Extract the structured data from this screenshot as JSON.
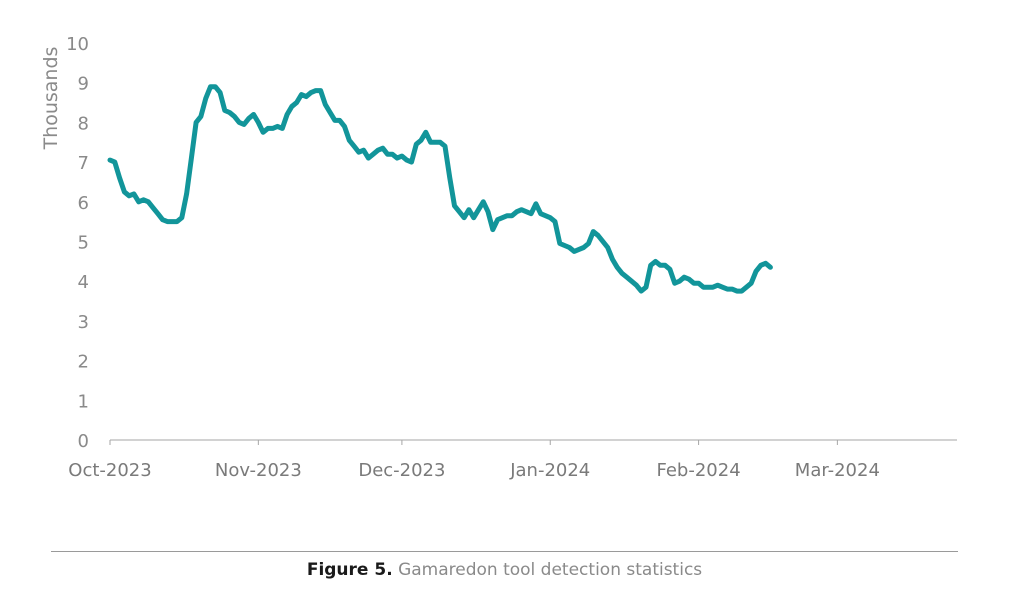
{
  "caption": {
    "label": "Figure 5.",
    "text": "Gamaredon tool detection statistics"
  },
  "colors": {
    "line": "#12959a",
    "axis": "#a6a6a6",
    "text": "#8a8a8a"
  },
  "chart_data": {
    "type": "line",
    "title": "",
    "xlabel": "",
    "ylabel": "Thousands",
    "ylim": [
      0,
      10
    ],
    "yticks": [
      "0",
      "1",
      "2",
      "3",
      "4",
      "5",
      "6",
      "7",
      "8",
      "9",
      "10"
    ],
    "xlim": [
      "2023-10-01",
      "2024-03-26"
    ],
    "xticks": [
      {
        "date": "2023-10-01",
        "label": "Oct-2023"
      },
      {
        "date": "2023-11-01",
        "label": "Nov-2023"
      },
      {
        "date": "2023-12-01",
        "label": "Dec-2023"
      },
      {
        "date": "2024-01-01",
        "label": "Jan-2024"
      },
      {
        "date": "2024-02-01",
        "label": "Feb-2024"
      },
      {
        "date": "2024-03-01",
        "label": "Mar-2024"
      }
    ],
    "grid": false,
    "legend": "none",
    "series": [
      {
        "points": [
          [
            "2023-10-01",
            7.05
          ],
          [
            "2023-10-02",
            7.0
          ],
          [
            "2023-10-03",
            6.6
          ],
          [
            "2023-10-04",
            6.25
          ],
          [
            "2023-10-05",
            6.15
          ],
          [
            "2023-10-06",
            6.2
          ],
          [
            "2023-10-07",
            6.0
          ],
          [
            "2023-10-08",
            6.05
          ],
          [
            "2023-10-09",
            6.0
          ],
          [
            "2023-10-10",
            5.85
          ],
          [
            "2023-10-11",
            5.7
          ],
          [
            "2023-10-12",
            5.55
          ],
          [
            "2023-10-13",
            5.5
          ],
          [
            "2023-10-14",
            5.5
          ],
          [
            "2023-10-15",
            5.5
          ],
          [
            "2023-10-16",
            5.6
          ],
          [
            "2023-10-17",
            6.2
          ],
          [
            "2023-10-18",
            7.1
          ],
          [
            "2023-10-19",
            8.0
          ],
          [
            "2023-10-20",
            8.15
          ],
          [
            "2023-10-21",
            8.6
          ],
          [
            "2023-10-22",
            8.9
          ],
          [
            "2023-10-23",
            8.9
          ],
          [
            "2023-10-24",
            8.75
          ],
          [
            "2023-10-25",
            8.3
          ],
          [
            "2023-10-26",
            8.25
          ],
          [
            "2023-10-27",
            8.15
          ],
          [
            "2023-10-28",
            8.0
          ],
          [
            "2023-10-29",
            7.95
          ],
          [
            "2023-10-30",
            8.1
          ],
          [
            "2023-10-31",
            8.2
          ],
          [
            "2023-11-01",
            8.0
          ],
          [
            "2023-11-02",
            7.75
          ],
          [
            "2023-11-03",
            7.85
          ],
          [
            "2023-11-04",
            7.85
          ],
          [
            "2023-11-05",
            7.9
          ],
          [
            "2023-11-06",
            7.85
          ],
          [
            "2023-11-07",
            8.2
          ],
          [
            "2023-11-08",
            8.4
          ],
          [
            "2023-11-09",
            8.5
          ],
          [
            "2023-11-10",
            8.7
          ],
          [
            "2023-11-11",
            8.65
          ],
          [
            "2023-11-12",
            8.75
          ],
          [
            "2023-11-13",
            8.8
          ],
          [
            "2023-11-14",
            8.8
          ],
          [
            "2023-11-15",
            8.45
          ],
          [
            "2023-11-16",
            8.25
          ],
          [
            "2023-11-17",
            8.05
          ],
          [
            "2023-11-18",
            8.05
          ],
          [
            "2023-11-19",
            7.9
          ],
          [
            "2023-11-20",
            7.55
          ],
          [
            "2023-11-21",
            7.4
          ],
          [
            "2023-11-22",
            7.25
          ],
          [
            "2023-11-23",
            7.3
          ],
          [
            "2023-11-24",
            7.1
          ],
          [
            "2023-11-25",
            7.2
          ],
          [
            "2023-11-26",
            7.3
          ],
          [
            "2023-11-27",
            7.35
          ],
          [
            "2023-11-28",
            7.2
          ],
          [
            "2023-11-29",
            7.2
          ],
          [
            "2023-11-30",
            7.1
          ],
          [
            "2023-12-01",
            7.15
          ],
          [
            "2023-12-02",
            7.05
          ],
          [
            "2023-12-03",
            7.0
          ],
          [
            "2023-12-04",
            7.45
          ],
          [
            "2023-12-05",
            7.55
          ],
          [
            "2023-12-06",
            7.75
          ],
          [
            "2023-12-07",
            7.5
          ],
          [
            "2023-12-08",
            7.5
          ],
          [
            "2023-12-09",
            7.5
          ],
          [
            "2023-12-10",
            7.4
          ],
          [
            "2023-12-11",
            6.6
          ],
          [
            "2023-12-12",
            5.9
          ],
          [
            "2023-12-13",
            5.75
          ],
          [
            "2023-12-14",
            5.6
          ],
          [
            "2023-12-15",
            5.8
          ],
          [
            "2023-12-16",
            5.6
          ],
          [
            "2023-12-17",
            5.8
          ],
          [
            "2023-12-18",
            6.0
          ],
          [
            "2023-12-19",
            5.75
          ],
          [
            "2023-12-20",
            5.3
          ],
          [
            "2023-12-21",
            5.55
          ],
          [
            "2023-12-22",
            5.6
          ],
          [
            "2023-12-23",
            5.65
          ],
          [
            "2023-12-24",
            5.65
          ],
          [
            "2023-12-25",
            5.75
          ],
          [
            "2023-12-26",
            5.8
          ],
          [
            "2023-12-27",
            5.75
          ],
          [
            "2023-12-28",
            5.7
          ],
          [
            "2023-12-29",
            5.95
          ],
          [
            "2023-12-30",
            5.7
          ],
          [
            "2023-12-31",
            5.65
          ],
          [
            "2024-01-01",
            5.6
          ],
          [
            "2024-01-02",
            5.5
          ],
          [
            "2024-01-03",
            4.95
          ],
          [
            "2024-01-04",
            4.9
          ],
          [
            "2024-01-05",
            4.85
          ],
          [
            "2024-01-06",
            4.75
          ],
          [
            "2024-01-07",
            4.8
          ],
          [
            "2024-01-08",
            4.85
          ],
          [
            "2024-01-09",
            4.95
          ],
          [
            "2024-01-10",
            5.25
          ],
          [
            "2024-01-11",
            5.15
          ],
          [
            "2024-01-12",
            5.0
          ],
          [
            "2024-01-13",
            4.85
          ],
          [
            "2024-01-14",
            4.55
          ],
          [
            "2024-01-15",
            4.35
          ],
          [
            "2024-01-16",
            4.2
          ],
          [
            "2024-01-17",
            4.1
          ],
          [
            "2024-01-18",
            4.0
          ],
          [
            "2024-01-19",
            3.9
          ],
          [
            "2024-01-20",
            3.75
          ],
          [
            "2024-01-21",
            3.85
          ],
          [
            "2024-01-22",
            4.4
          ],
          [
            "2024-01-23",
            4.5
          ],
          [
            "2024-01-24",
            4.4
          ],
          [
            "2024-01-25",
            4.4
          ],
          [
            "2024-01-26",
            4.3
          ],
          [
            "2024-01-27",
            3.95
          ],
          [
            "2024-01-28",
            4.0
          ],
          [
            "2024-01-29",
            4.1
          ],
          [
            "2024-01-30",
            4.05
          ],
          [
            "2024-01-31",
            3.95
          ],
          [
            "2024-02-01",
            3.95
          ],
          [
            "2024-02-02",
            3.85
          ],
          [
            "2024-02-03",
            3.85
          ],
          [
            "2024-02-04",
            3.85
          ],
          [
            "2024-02-05",
            3.9
          ],
          [
            "2024-02-06",
            3.85
          ],
          [
            "2024-02-07",
            3.8
          ],
          [
            "2024-02-08",
            3.8
          ],
          [
            "2024-02-09",
            3.75
          ],
          [
            "2024-02-10",
            3.75
          ],
          [
            "2024-02-11",
            3.85
          ],
          [
            "2024-02-12",
            3.95
          ],
          [
            "2024-02-13",
            4.25
          ],
          [
            "2024-02-14",
            4.4
          ],
          [
            "2024-02-15",
            4.45
          ],
          [
            "2024-02-16",
            4.35
          ]
        ]
      }
    ]
  }
}
